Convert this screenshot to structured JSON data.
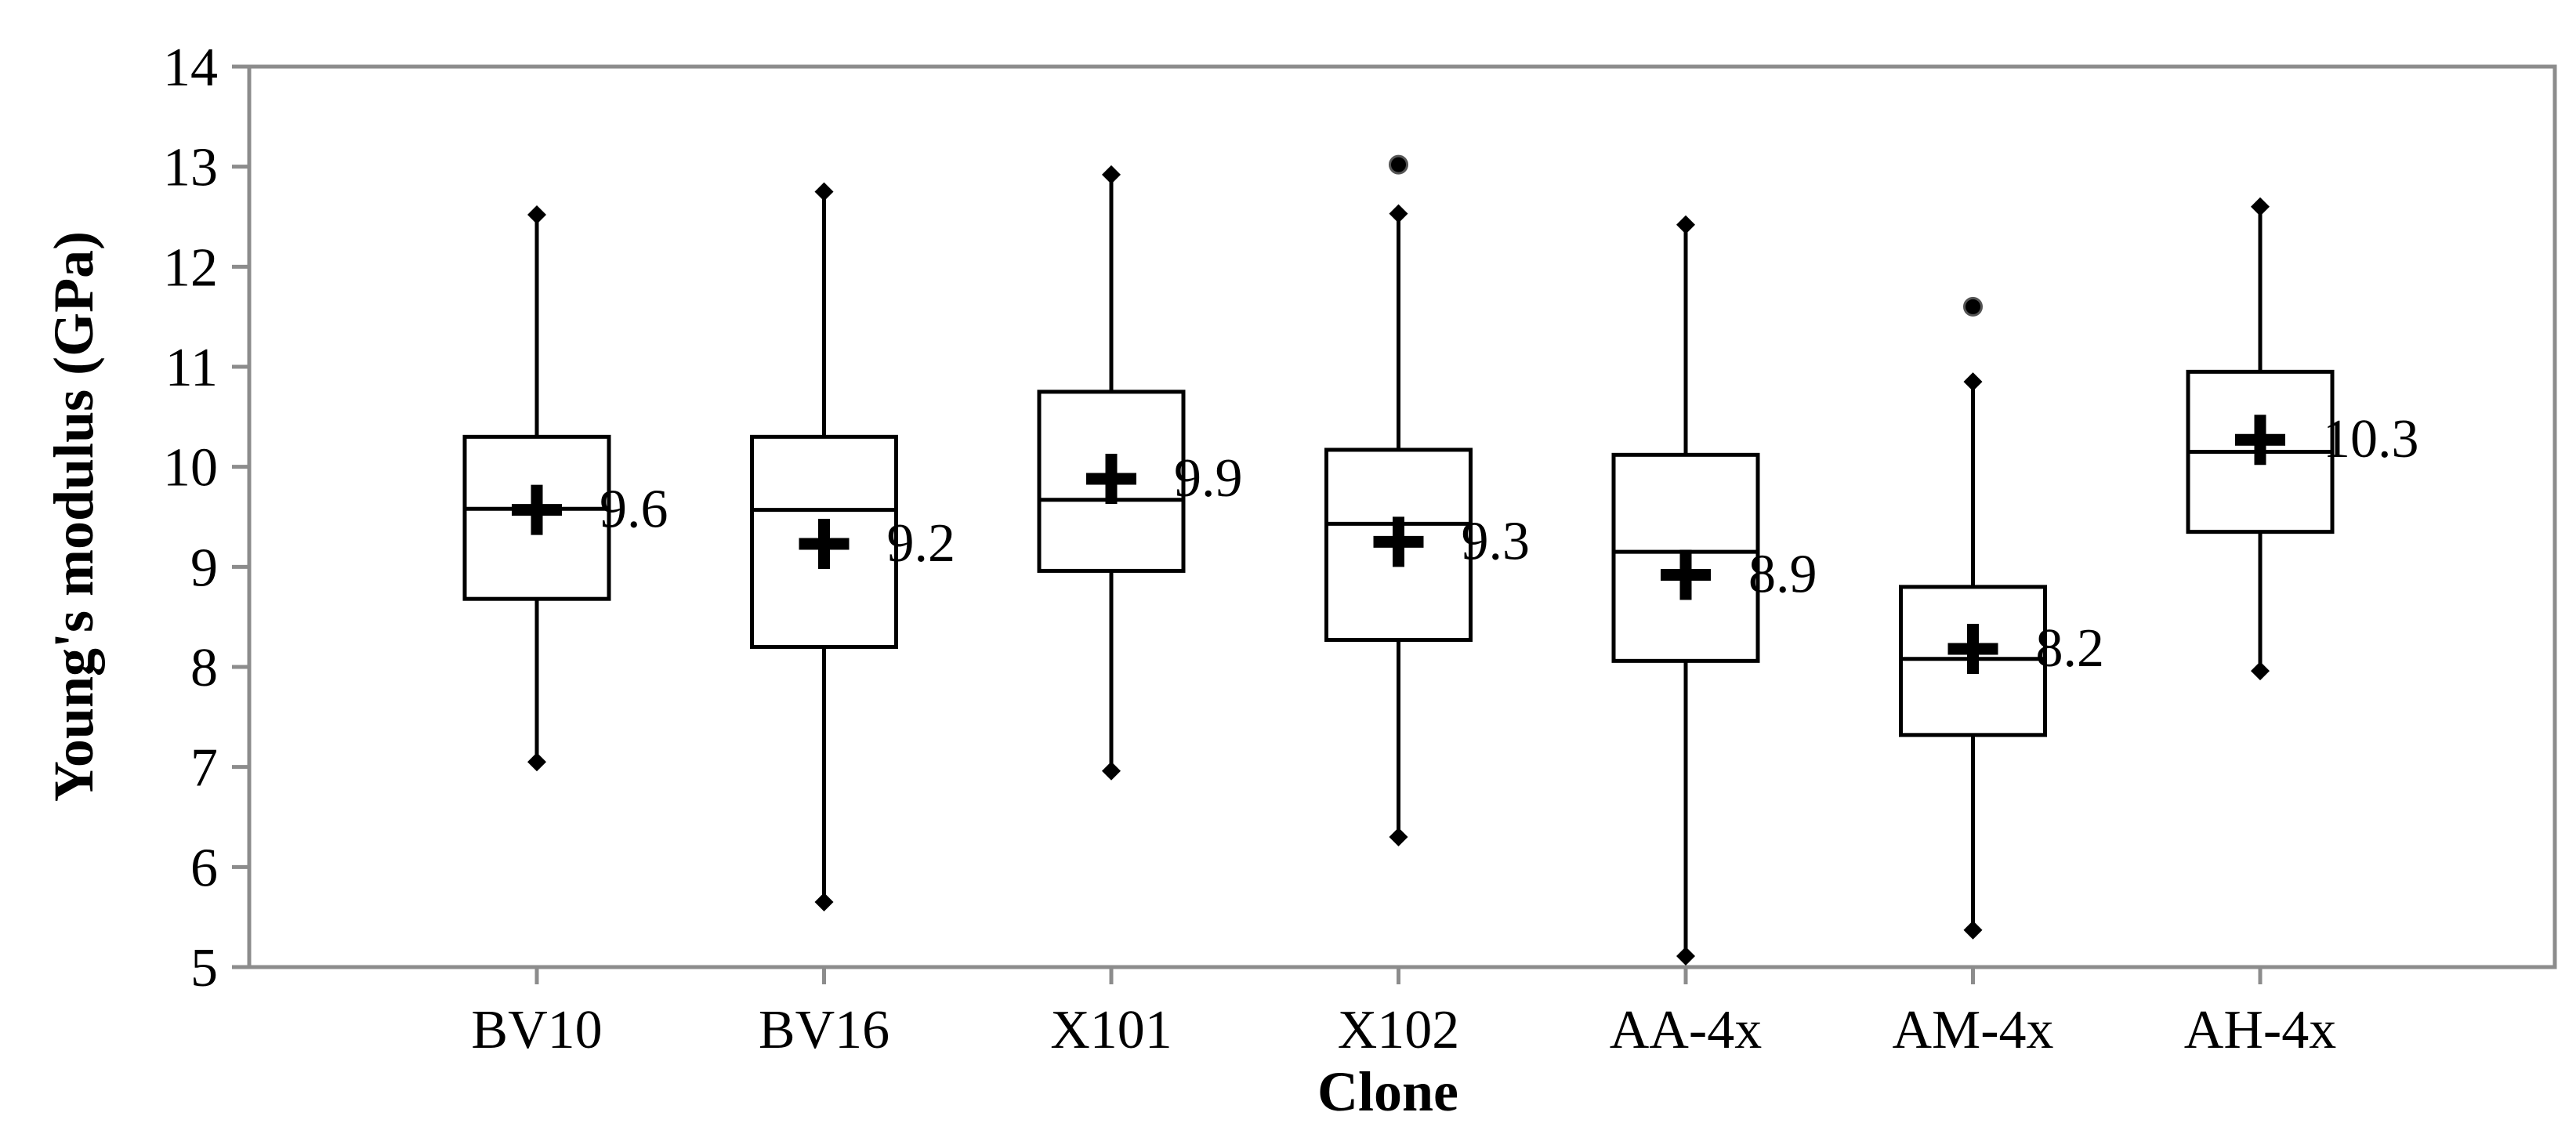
{
  "chart_data": {
    "type": "box",
    "title": "",
    "xlabel": "Clone",
    "ylabel": "Young's modulus (GPa)",
    "ylim": [
      5,
      14
    ],
    "y_ticks": [
      "5",
      "6",
      "7",
      "8",
      "9",
      "10",
      "11",
      "12",
      "13",
      "14"
    ],
    "grid": false,
    "categories": [
      "BV10",
      "BV16",
      "X101",
      "X102",
      "AA-4x",
      "AM-4x",
      "AH-4x"
    ],
    "boxes": [
      {
        "category": "BV10",
        "min": 7.05,
        "q1": 8.68,
        "median": 9.58,
        "q3": 10.3,
        "max": 12.52,
        "mean": 9.57,
        "mean_label": "9.6",
        "outliers": []
      },
      {
        "category": "BV16",
        "min": 5.65,
        "q1": 8.2,
        "median": 9.57,
        "q3": 10.3,
        "max": 12.75,
        "mean": 9.23,
        "mean_label": "9.2",
        "outliers": []
      },
      {
        "category": "X101",
        "min": 6.96,
        "q1": 8.96,
        "median": 9.67,
        "q3": 10.75,
        "max": 12.92,
        "mean": 9.88,
        "mean_label": "9.9",
        "outliers": []
      },
      {
        "category": "X102",
        "min": 6.3,
        "q1": 8.27,
        "median": 9.43,
        "q3": 10.17,
        "max": 12.53,
        "mean": 9.25,
        "mean_label": "9.3",
        "outliers": [
          13.02
        ]
      },
      {
        "category": "AA-4x",
        "min": 5.11,
        "q1": 8.06,
        "median": 9.15,
        "q3": 10.12,
        "max": 12.42,
        "mean": 8.92,
        "mean_label": "8.9",
        "outliers": []
      },
      {
        "category": "AM-4x",
        "min": 5.37,
        "q1": 7.32,
        "median": 8.08,
        "q3": 8.8,
        "max": 10.85,
        "mean": 8.18,
        "mean_label": "8.2",
        "outliers": [
          11.6
        ]
      },
      {
        "category": "AH-4x",
        "min": 7.96,
        "q1": 9.35,
        "median": 10.15,
        "q3": 10.95,
        "max": 12.6,
        "mean": 10.27,
        "mean_label": "10.3",
        "outliers": []
      }
    ],
    "colors": {
      "frame": "#8c8c8c",
      "ink": "#000000",
      "background": "#ffffff"
    }
  }
}
